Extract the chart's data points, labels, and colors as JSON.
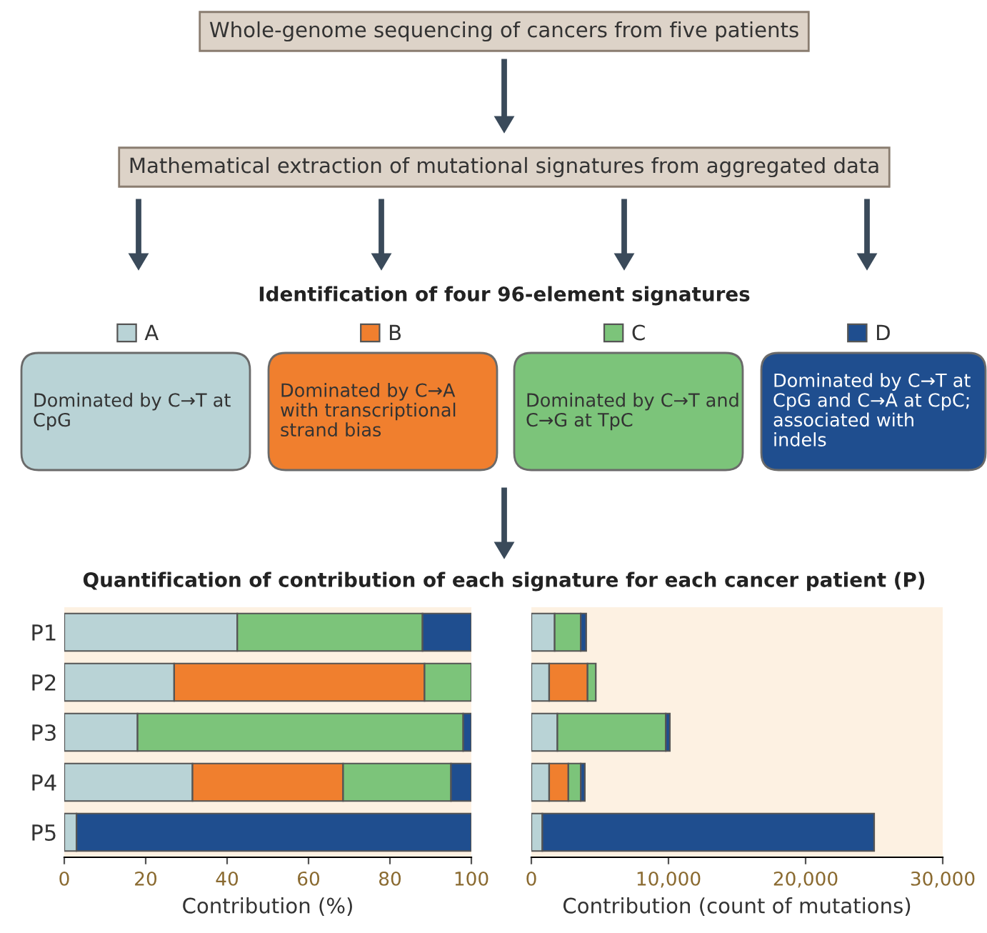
{
  "chart_data": [
    {
      "type": "other",
      "annotations": [
        "Whole-genome sequencing of cancers from five patients",
        "Mathematical extraction of mutational signatures from aggregated data",
        "Identification of four 96-element signatures",
        "Dominated by C→T at CpG",
        "Dominated by C→A with transcriptional strand bias",
        "Dominated by C→T and C→G at TpC",
        "Dominated by C→T at CpG and C→A at CpC; associated with indels",
        "Quantification of contribution of each signature for each cancer patient (P)"
      ]
    },
    {
      "type": "bar",
      "orientation": "horizontal",
      "stacked": true,
      "categories": [
        "P1",
        "P2",
        "P3",
        "P4",
        "P5"
      ],
      "xlabel": "Contribution (%)",
      "xlim": [
        0,
        100
      ],
      "xticks": [
        0,
        20,
        40,
        60,
        80,
        100
      ],
      "legend": "top",
      "grid": false,
      "series": [
        {
          "name": "A",
          "color": "#b9d3d6",
          "values": [
            42.5,
            27,
            18,
            31.5,
            3
          ]
        },
        {
          "name": "B",
          "color": "#f07f2e",
          "values": [
            0,
            61.5,
            0,
            37,
            0
          ]
        },
        {
          "name": "C",
          "color": "#7cc47a",
          "values": [
            45.5,
            11.5,
            80,
            26.5,
            0
          ]
        },
        {
          "name": "D",
          "color": "#1f4e8f",
          "values": [
            12,
            0,
            2,
            5,
            97
          ]
        }
      ]
    },
    {
      "type": "bar",
      "orientation": "horizontal",
      "stacked": true,
      "categories": [
        null,
        null,
        null,
        null,
        null
      ],
      "xlabel": "Contribution (count of mutations)",
      "xlim": [
        0,
        30000
      ],
      "xticks": [
        0,
        {
          "value": 10000,
          "label": "10,000"
        },
        {
          "value": 20000,
          "label": "20,000"
        },
        {
          "value": 30000,
          "label": "30,000"
        }
      ],
      "tick_labels": "x",
      "grid": false,
      "series": [
        {
          "color": "#b9d3d6",
          "values": [
            1700,
            1300,
            1900,
            1300,
            800
          ]
        },
        {
          "color": "#f07f2e",
          "values": [
            0,
            2800,
            0,
            1400,
            0
          ]
        },
        {
          "color": "#7cc47a",
          "values": [
            1900,
            600,
            7900,
            900,
            0
          ]
        },
        {
          "color": "#1f4e8f",
          "values": [
            400,
            0,
            300,
            300,
            24200
          ]
        }
      ]
    }
  ]
}
